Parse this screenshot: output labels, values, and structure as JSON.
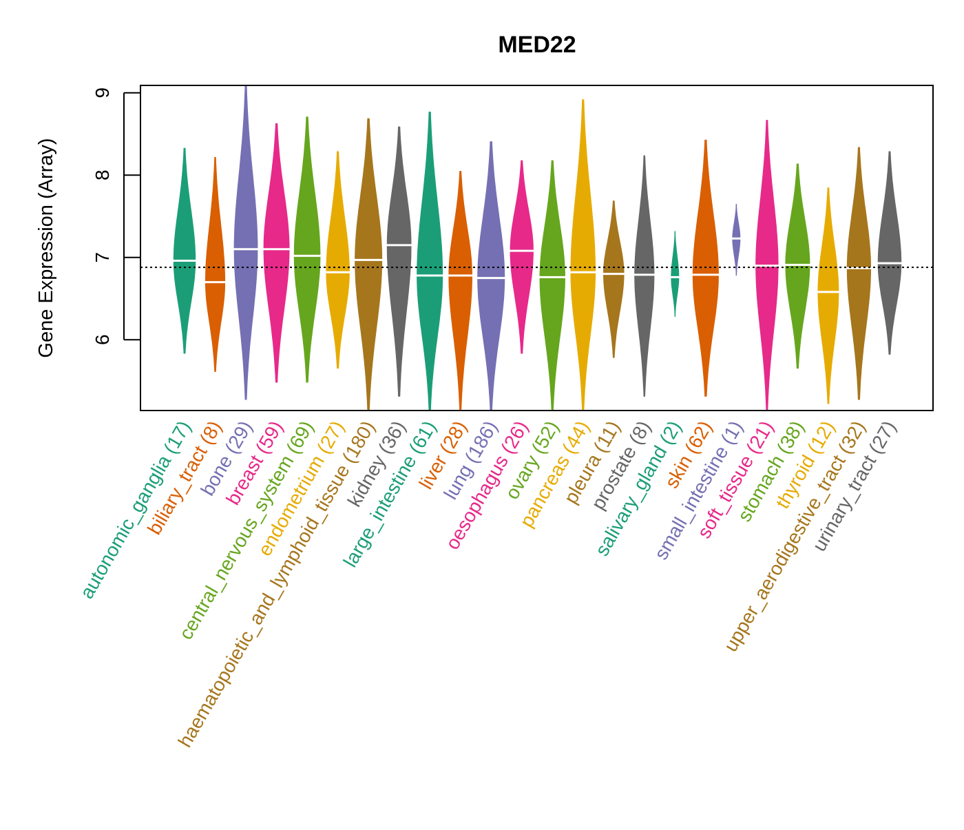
{
  "chart_data": {
    "type": "beanplot",
    "title": "MED22",
    "xlabel": "",
    "ylabel": "Gene Expression (Array)",
    "ylim": [
      5.14,
      9.09
    ],
    "yticks": [
      6,
      7,
      8,
      9
    ],
    "reference_line": 6.88,
    "grid": false,
    "palette": [
      "#1B9E77",
      "#D95F02",
      "#7570B3",
      "#E7298A",
      "#66A61E",
      "#E6AB02",
      "#A6761D",
      "#666666"
    ],
    "categories": [
      {
        "name": "autonomic_ganglia",
        "n": "(17)",
        "median": 6.96,
        "min": 5.83,
        "max": 8.33
      },
      {
        "name": "biliary_tract",
        "n": "(8)",
        "median": 6.7,
        "min": 5.61,
        "max": 8.22
      },
      {
        "name": "bone",
        "n": "(29)",
        "median": 7.1,
        "min": 5.27,
        "max": 9.09
      },
      {
        "name": "breast",
        "n": "(59)",
        "median": 7.1,
        "min": 5.48,
        "max": 8.63
      },
      {
        "name": "central_nervous_system",
        "n": "(69)",
        "median": 7.02,
        "min": 5.48,
        "max": 8.71
      },
      {
        "name": "endometrium",
        "n": "(27)",
        "median": 6.82,
        "min": 5.65,
        "max": 8.29
      },
      {
        "name": "haematopoietic_and_lymphoid_tissue",
        "n": "(180)",
        "median": 6.97,
        "min": 5.14,
        "max": 8.69
      },
      {
        "name": "kidney",
        "n": "(36)",
        "median": 7.15,
        "min": 5.31,
        "max": 8.59
      },
      {
        "name": "large_intestine",
        "n": "(61)",
        "median": 6.78,
        "min": 5.14,
        "max": 8.77
      },
      {
        "name": "liver",
        "n": "(28)",
        "median": 6.78,
        "min": 5.14,
        "max": 8.05
      },
      {
        "name": "lung",
        "n": "(186)",
        "median": 6.75,
        "min": 5.14,
        "max": 8.41
      },
      {
        "name": "oesophagus",
        "n": "(26)",
        "median": 7.08,
        "min": 5.83,
        "max": 8.18
      },
      {
        "name": "ovary",
        "n": "(52)",
        "median": 6.76,
        "min": 5.14,
        "max": 8.18
      },
      {
        "name": "pancreas",
        "n": "(44)",
        "median": 6.82,
        "min": 5.14,
        "max": 8.92
      },
      {
        "name": "pleura",
        "n": "(11)",
        "median": 6.8,
        "min": 5.78,
        "max": 7.69
      },
      {
        "name": "prostate",
        "n": "(8)",
        "median": 6.79,
        "min": 5.31,
        "max": 8.24
      },
      {
        "name": "salivary_gland",
        "n": "(2)",
        "median": 6.76,
        "min": 6.28,
        "max": 7.32
      },
      {
        "name": "skin",
        "n": "(62)",
        "median": 6.79,
        "min": 5.31,
        "max": 8.43
      },
      {
        "name": "small_intestine",
        "n": "(1)",
        "median": 7.23,
        "min": 6.78,
        "max": 7.65
      },
      {
        "name": "soft_tissue",
        "n": "(21)",
        "median": 6.9,
        "min": 5.14,
        "max": 8.67
      },
      {
        "name": "stomach",
        "n": "(38)",
        "median": 6.91,
        "min": 5.65,
        "max": 8.14
      },
      {
        "name": "thyroid",
        "n": "(12)",
        "median": 6.58,
        "min": 5.22,
        "max": 7.85
      },
      {
        "name": "upper_aerodigestive_tract",
        "n": "(32)",
        "median": 6.87,
        "min": 5.27,
        "max": 8.34
      },
      {
        "name": "urinary_tract",
        "n": "(27)",
        "median": 6.93,
        "min": 5.82,
        "max": 8.29
      }
    ]
  }
}
